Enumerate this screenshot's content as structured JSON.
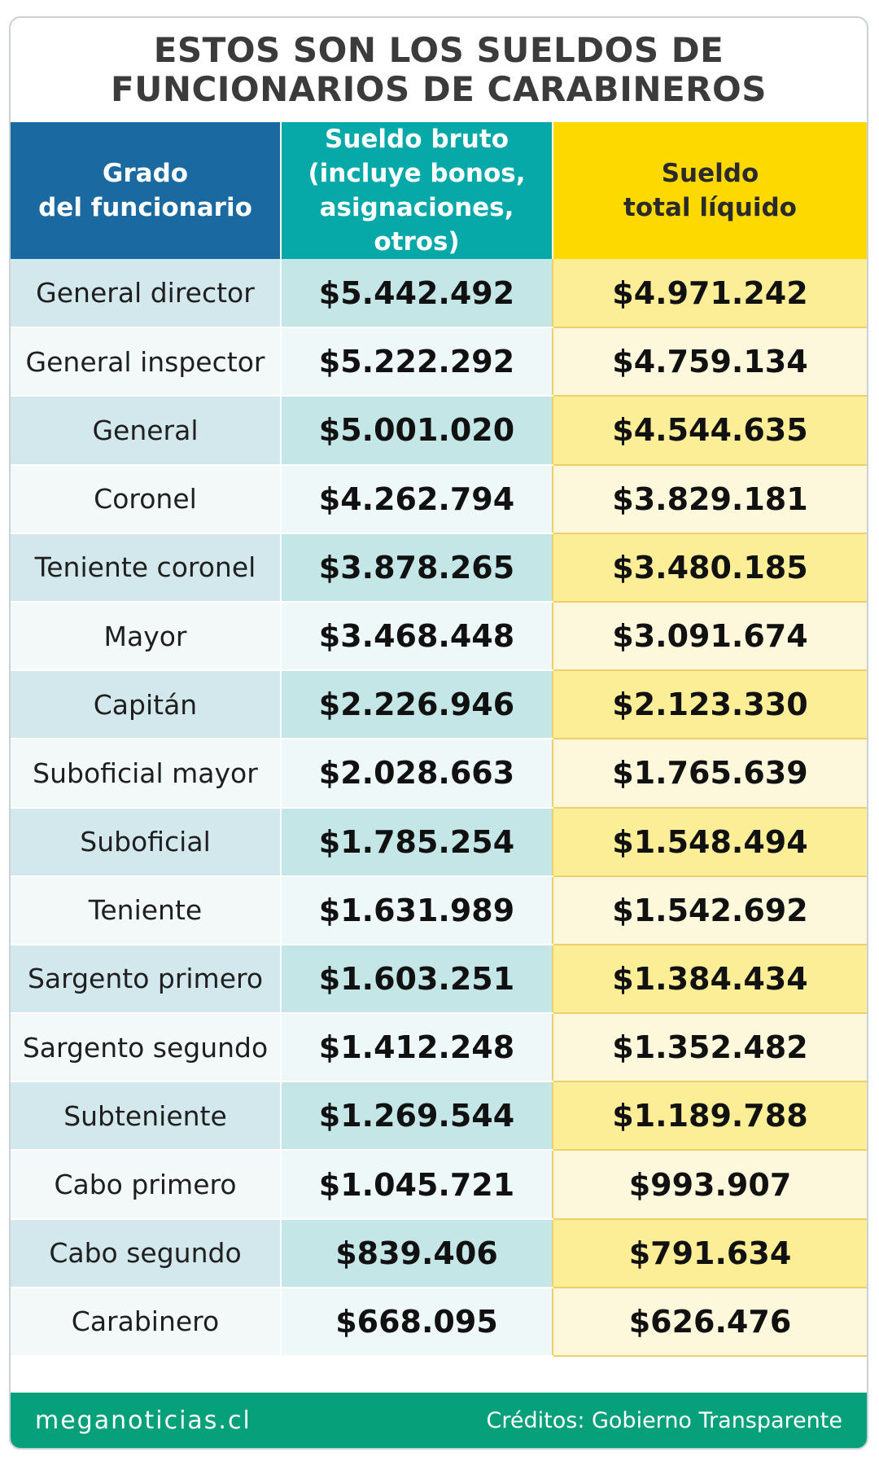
{
  "title": {
    "line1": "ESTOS SON LOS SUELDOS DE",
    "line2": "FUNCIONARIOS DE CARABINEROS"
  },
  "headers": {
    "grade": [
      "Grado",
      "del funcionario"
    ],
    "gross": [
      "Sueldo bruto",
      "(incluye bonos,",
      "asignaciones, otros)"
    ],
    "net": [
      "Sueldo",
      "total líquido"
    ]
  },
  "footer": {
    "site": "meganoticias.cl",
    "credits": "Créditos: Gobierno Transparente"
  },
  "chart_data": {
    "type": "table",
    "title": "ESTOS SON LOS SUELDOS DE FUNCIONARIOS DE CARABINEROS",
    "columns": [
      "Grado del funcionario",
      "Sueldo bruto (incluye bonos, asignaciones, otros)",
      "Sueldo total líquido"
    ],
    "rows": [
      {
        "grade": "General director",
        "gross": "$5.442.492",
        "net": "$4.971.242"
      },
      {
        "grade": "General inspector",
        "gross": "$5.222.292",
        "net": "$4.759.134"
      },
      {
        "grade": "General",
        "gross": "$5.001.020",
        "net": "$4.544.635"
      },
      {
        "grade": "Coronel",
        "gross": "$4.262.794",
        "net": "$3.829.181"
      },
      {
        "grade": "Teniente coronel",
        "gross": "$3.878.265",
        "net": "$3.480.185"
      },
      {
        "grade": "Mayor",
        "gross": "$3.468.448",
        "net": "$3.091.674"
      },
      {
        "grade": "Capitán",
        "gross": "$2.226.946",
        "net": "$2.123.330"
      },
      {
        "grade": "Suboficial mayor",
        "gross": "$2.028.663",
        "net": "$1.765.639"
      },
      {
        "grade": "Suboficial",
        "gross": "$1.785.254",
        "net": "$1.548.494"
      },
      {
        "grade": "Teniente",
        "gross": "$1.631.989",
        "net": "$1.542.692"
      },
      {
        "grade": "Sargento primero",
        "gross": "$1.603.251",
        "net": "$1.384.434"
      },
      {
        "grade": "Sargento segundo",
        "gross": "$1.412.248",
        "net": "$1.352.482"
      },
      {
        "grade": "Subteniente",
        "gross": "$1.269.544",
        "net": "$1.189.788"
      },
      {
        "grade": "Cabo primero",
        "gross": "$1.045.721",
        "net": "$993.907"
      },
      {
        "grade": "Cabo segundo",
        "gross": "$839.406",
        "net": "$791.634"
      },
      {
        "grade": "Carabinero",
        "gross": "$668.095",
        "net": "$626.476"
      }
    ]
  }
}
